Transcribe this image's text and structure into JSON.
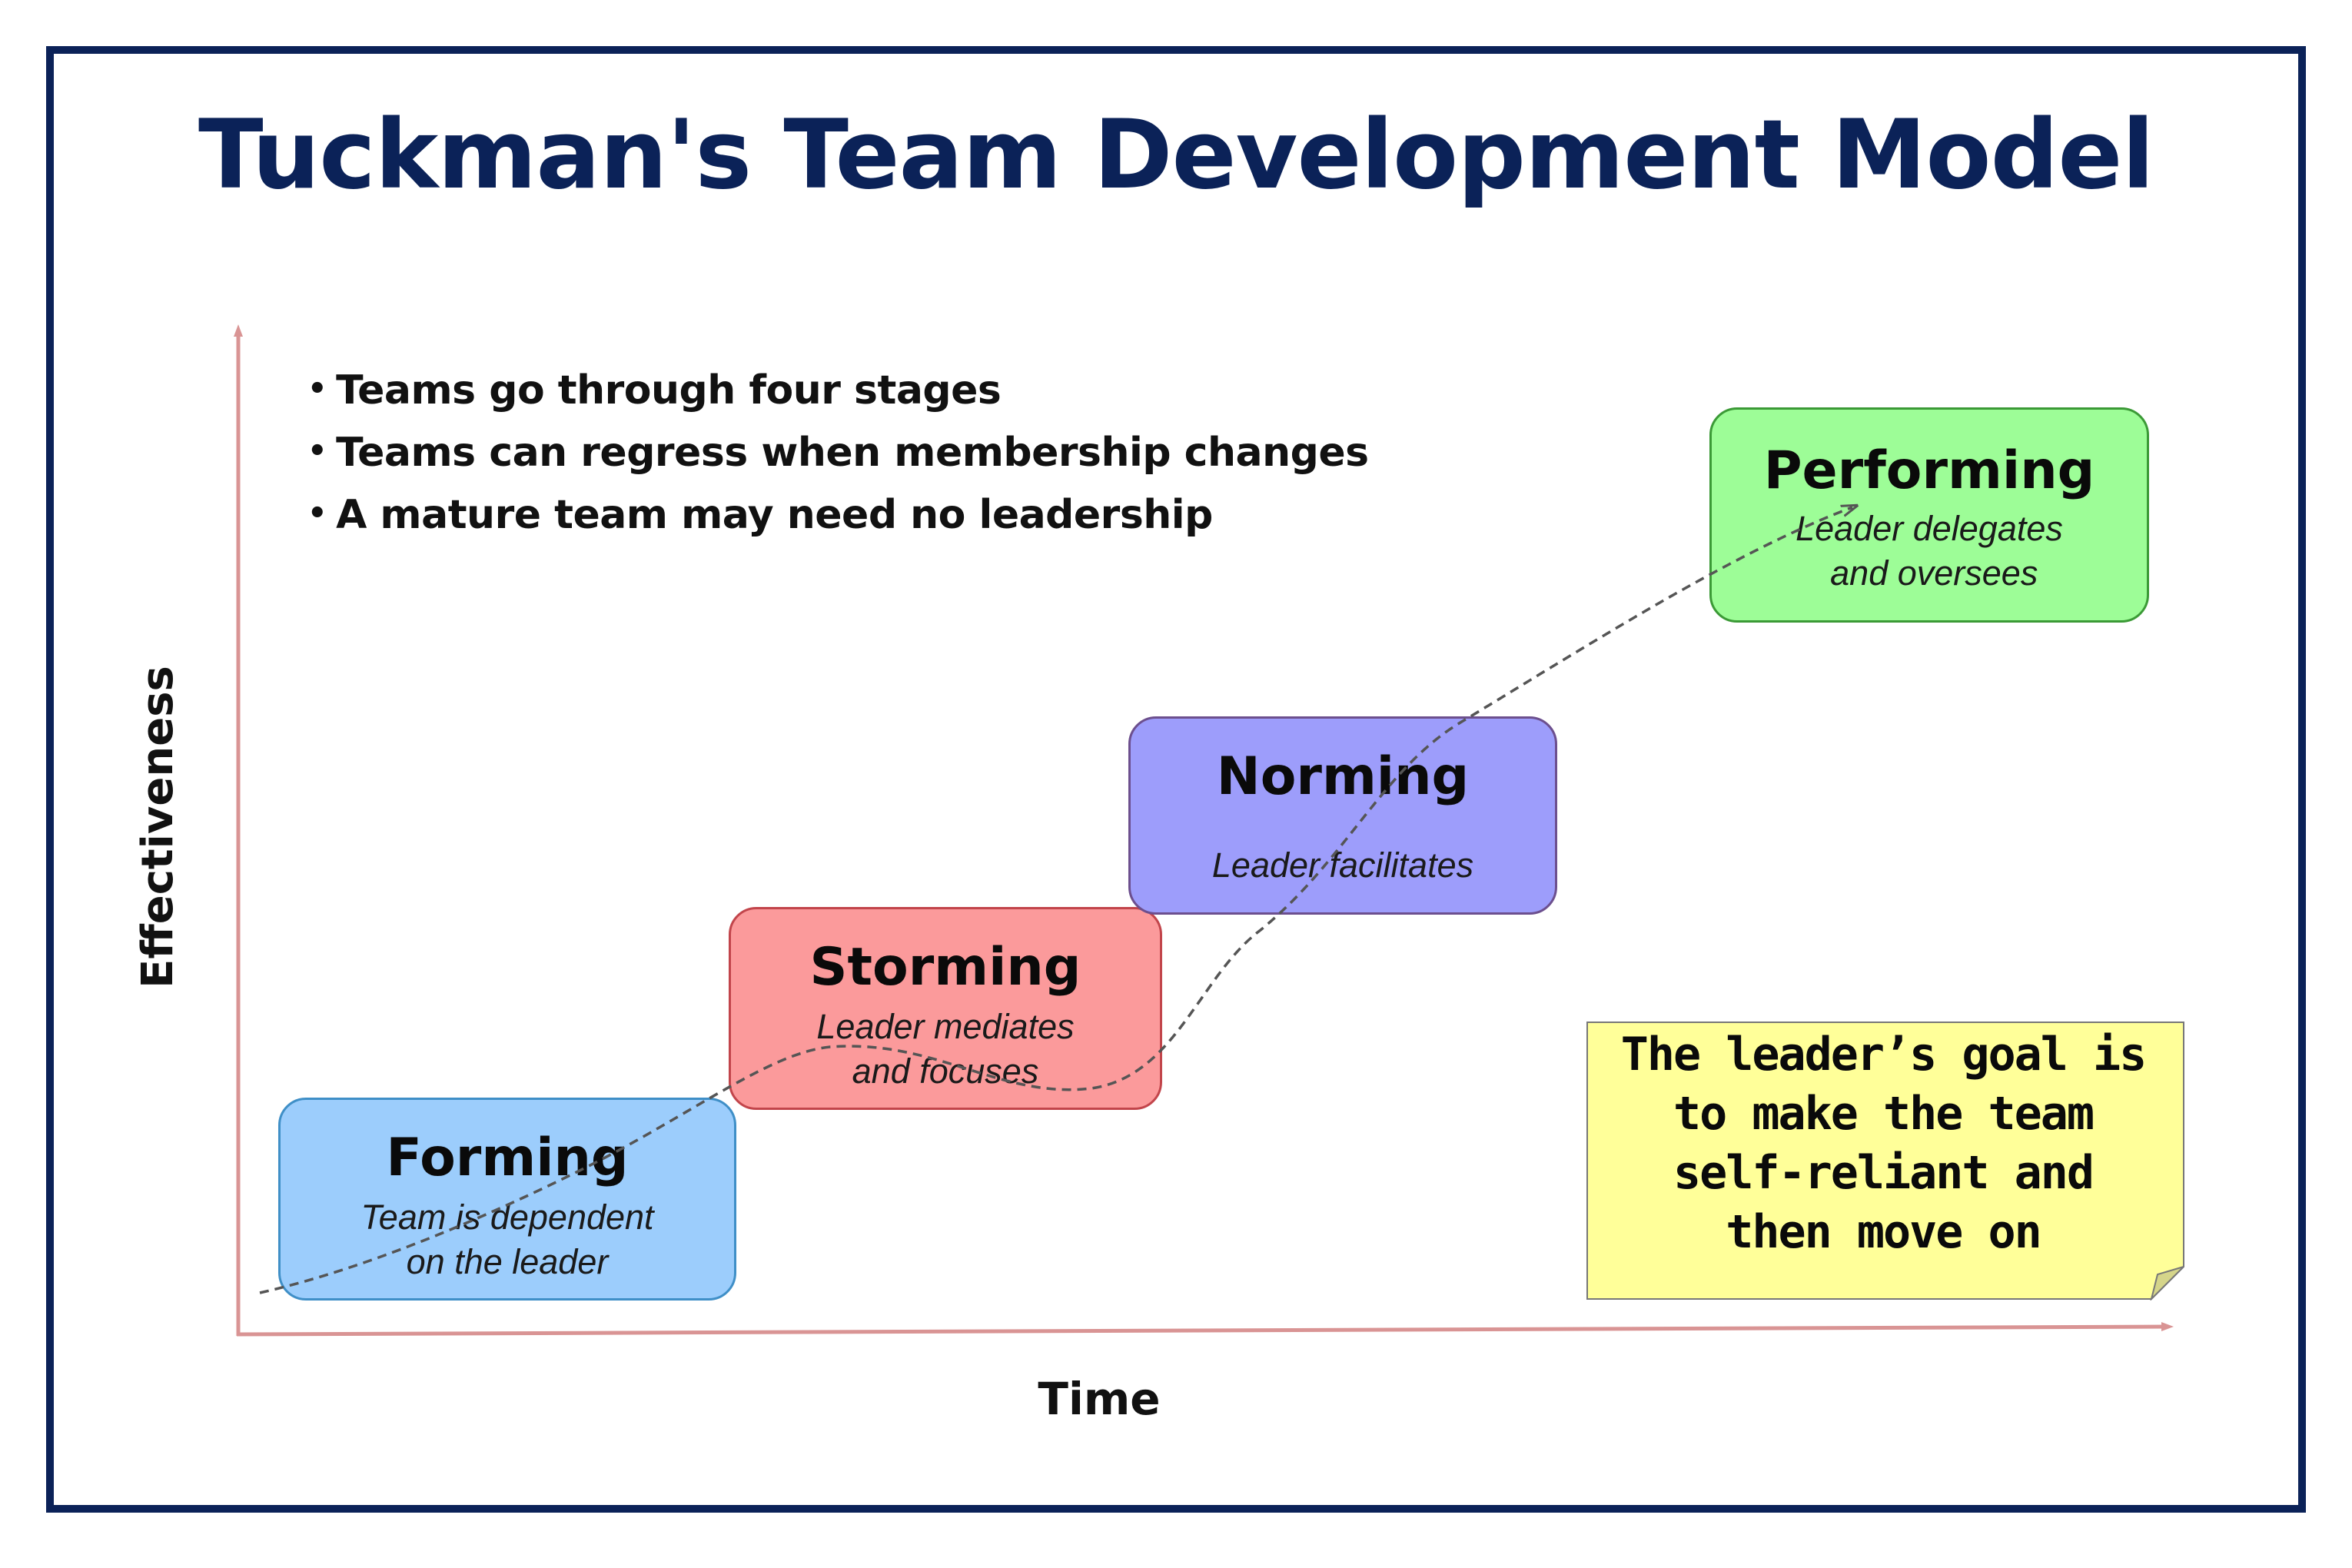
{
  "title": "Tuckman's Team Development Model",
  "bullets": [
    "Teams go through four stages",
    "Teams can regress when membership changes",
    "A mature team may need no leadership"
  ],
  "axes": {
    "x_label": "Time",
    "y_label": "Effectiveness"
  },
  "stages": [
    {
      "name": "Forming",
      "description": "Team is dependent\non the leader",
      "color": "#9ccdfc"
    },
    {
      "name": "Storming",
      "description": "Leader mediates\nand focuses",
      "color": "#fb9a9b"
    },
    {
      "name": "Norming",
      "description": "Leader facilitates",
      "color": "#9d9dfb"
    },
    {
      "name": "Performing",
      "description": "Leader delegates\n and oversees",
      "color": "#9dfd97"
    }
  ],
  "note": {
    "text": "The leader’s goal is\nto make the team\nself-reliant and\nthen move on",
    "color": "#ffff99"
  },
  "colors": {
    "frame": "#0b2258",
    "title": "#0b2258",
    "axis": "#d99494",
    "curve": "#555555"
  }
}
